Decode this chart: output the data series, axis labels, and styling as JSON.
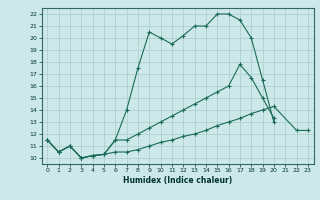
{
  "xlabel": "Humidex (Indice chaleur)",
  "background_color": "#cde8e8",
  "grid_color": "#b0d0d0",
  "line_color": "#1a6b5a",
  "xlim": [
    -0.5,
    23.5
  ],
  "ylim": [
    9.5,
    22.5
  ],
  "xticks": [
    0,
    1,
    2,
    3,
    4,
    5,
    6,
    7,
    8,
    9,
    10,
    11,
    12,
    13,
    14,
    15,
    16,
    17,
    18,
    19,
    20,
    21,
    22,
    23
  ],
  "yticks": [
    10,
    11,
    12,
    13,
    14,
    15,
    16,
    17,
    18,
    19,
    20,
    21,
    22
  ],
  "line1_x": [
    0,
    1,
    2,
    3,
    4,
    5,
    6,
    7,
    8,
    9,
    10,
    11,
    12,
    13,
    14,
    15,
    16,
    17,
    18,
    19,
    20
  ],
  "line1_y": [
    11.5,
    10.5,
    11.0,
    10.0,
    10.2,
    10.3,
    11.5,
    14.0,
    17.5,
    20.5,
    20.0,
    19.5,
    20.2,
    21.0,
    21.0,
    22.0,
    22.0,
    21.5,
    20.0,
    16.5,
    13.0
  ],
  "line2_x": [
    0,
    1,
    2,
    3,
    4,
    5,
    6,
    7,
    8,
    9,
    10,
    11,
    12,
    13,
    14,
    15,
    16,
    17,
    18,
    19,
    20
  ],
  "line2_y": [
    11.5,
    10.5,
    11.0,
    10.0,
    10.2,
    10.3,
    11.5,
    11.5,
    12.0,
    12.5,
    13.0,
    13.5,
    14.0,
    14.5,
    15.0,
    15.5,
    16.0,
    17.8,
    16.7,
    15.0,
    13.3
  ],
  "line3_x": [
    0,
    1,
    2,
    3,
    4,
    5,
    6,
    7,
    8,
    9,
    10,
    11,
    12,
    13,
    14,
    15,
    16,
    17,
    18,
    19,
    20,
    22,
    23
  ],
  "line3_y": [
    11.5,
    10.5,
    11.0,
    10.0,
    10.2,
    10.3,
    10.5,
    10.5,
    10.7,
    11.0,
    11.3,
    11.5,
    11.8,
    12.0,
    12.3,
    12.7,
    13.0,
    13.3,
    13.7,
    14.0,
    14.3,
    12.3,
    12.3
  ]
}
